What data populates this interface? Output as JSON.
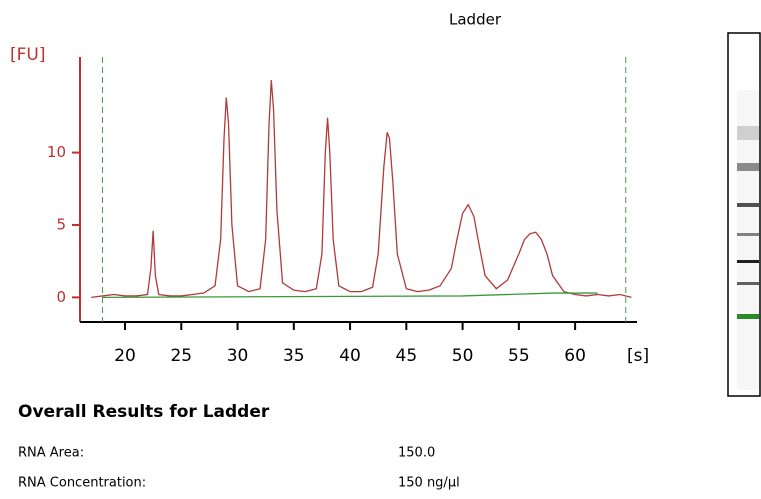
{
  "chart_data": {
    "type": "line",
    "title": "Ladder",
    "ylabel": "[FU]",
    "xlabel": "[s]",
    "xlim": [
      16,
      65.5
    ],
    "ylim": [
      -1.7,
      16.6
    ],
    "xticks": [
      20,
      25,
      30,
      35,
      40,
      45,
      50,
      55,
      60
    ],
    "yticks": [
      0,
      5,
      10
    ],
    "vlines": [
      18,
      64.5
    ],
    "vline_color": "#4a9a4a",
    "series": [
      {
        "color": "#b03a3a",
        "x": [
          17,
          18,
          19,
          20,
          21,
          22,
          22.3,
          22.5,
          22.7,
          23,
          24,
          25,
          26,
          27,
          28,
          28.5,
          28.8,
          29,
          29.2,
          29.5,
          30,
          31,
          32,
          32.5,
          32.8,
          33,
          33.2,
          33.5,
          34,
          35,
          36,
          37,
          37.5,
          37.8,
          38,
          38.2,
          38.5,
          39,
          40,
          41,
          42,
          42.5,
          43,
          43.3,
          43.5,
          43.8,
          44.2,
          45,
          46,
          47,
          48,
          49,
          49.5,
          50,
          50.5,
          51,
          51.5,
          52,
          53,
          54,
          55,
          55.5,
          56,
          56.5,
          57,
          57.5,
          58,
          59,
          60,
          61,
          62,
          63,
          64,
          65
        ],
        "values": [
          0,
          0.1,
          0.2,
          0.1,
          0.1,
          0.2,
          2,
          4.6,
          1.5,
          0.2,
          0.1,
          0.1,
          0.2,
          0.3,
          0.8,
          4,
          11,
          13.8,
          12,
          5,
          0.8,
          0.4,
          0.6,
          4,
          12,
          15,
          13,
          6,
          1,
          0.5,
          0.4,
          0.6,
          3,
          10,
          12.4,
          10,
          4,
          0.8,
          0.4,
          0.4,
          0.7,
          3,
          9,
          11.4,
          11,
          8,
          3,
          0.6,
          0.4,
          0.5,
          0.8,
          2,
          4,
          5.8,
          6.4,
          5.6,
          3.5,
          1.5,
          0.6,
          1.2,
          3,
          4,
          4.4,
          4.5,
          4,
          3,
          1.5,
          0.4,
          0.2,
          0.1,
          0.2,
          0.1,
          0.2,
          0
        ]
      },
      {
        "color": "#3a9a3a",
        "x": [
          18,
          50,
          58,
          62
        ],
        "values": [
          0,
          0.1,
          0.3,
          0.3
        ]
      }
    ]
  },
  "results": {
    "title": "Overall Results for Ladder",
    "rows": [
      [
        "RNA Area:",
        "150.0"
      ],
      [
        "RNA Concentration:",
        "150 ng/µl"
      ]
    ]
  }
}
